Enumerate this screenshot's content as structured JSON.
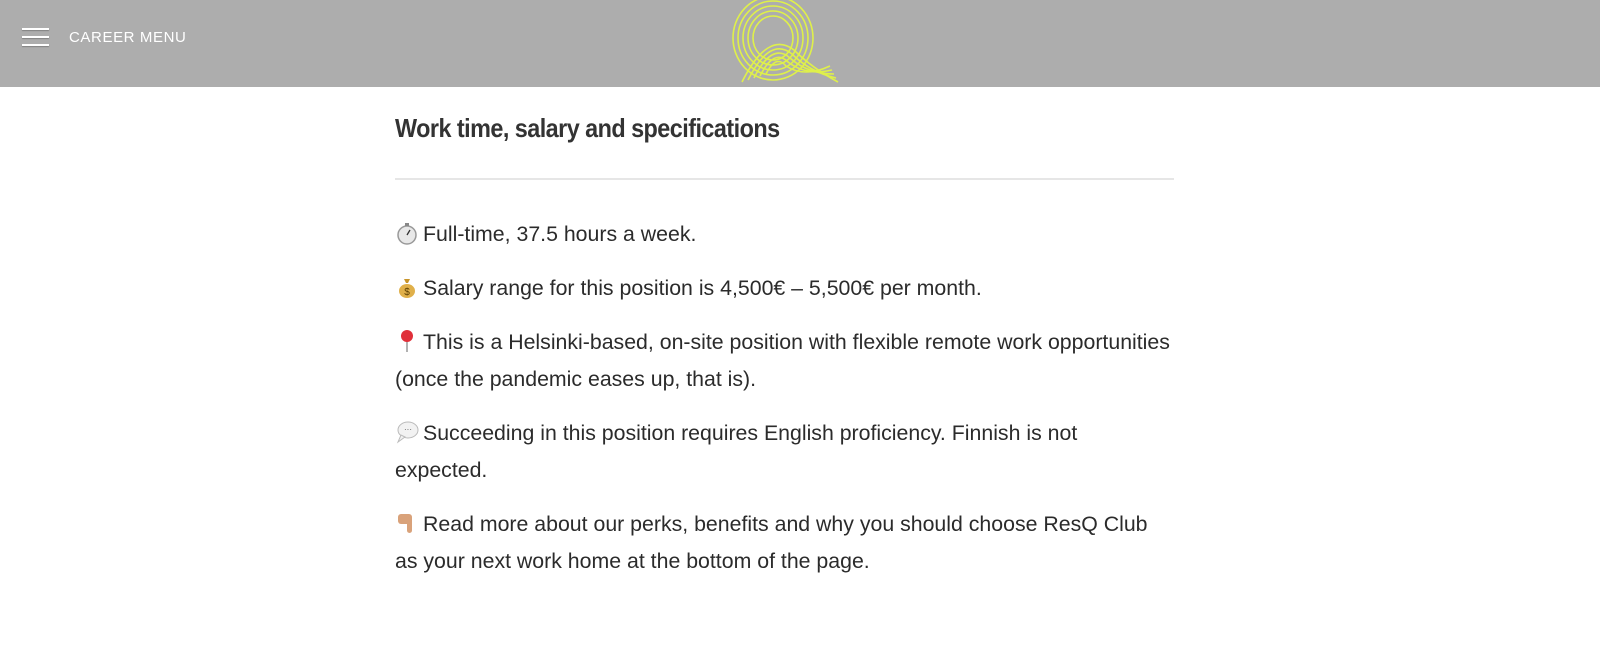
{
  "header": {
    "menu_label": "CAREER MENU",
    "logo_color": "#dff04a",
    "background": "#adadad"
  },
  "section": {
    "title": "Work time, salary and specifications",
    "items": [
      {
        "icon": "stopwatch-icon",
        "text": "Full-time, 37.5 hours a week."
      },
      {
        "icon": "money-bag-icon",
        "text": "Salary range for this position is 4,500€ – 5,500€ per month."
      },
      {
        "icon": "pushpin-icon",
        "text": "This is a Helsinki-based, on-site position with flexible remote work opportunities (once the pandemic eases up, that is)."
      },
      {
        "icon": "speech-bubble-icon",
        "text": "Succeeding in this position requires English proficiency. Finnish is not expected."
      },
      {
        "icon": "pointing-down-hand-icon",
        "text": "Read more about our perks, benefits and why you should choose ResQ Club as your next work home at the bottom of the page."
      }
    ]
  }
}
